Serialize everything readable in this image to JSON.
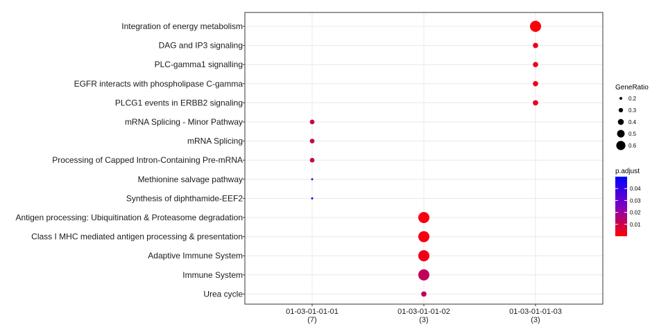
{
  "chart_data": {
    "type": "scatter",
    "grid": true,
    "legend_placement": "right",
    "x_categories": [
      "01-03-01-01-01\n(7)",
      "01-03-01-01-02\n(3)",
      "01-03-01-01-03\n(3)"
    ],
    "y_categories": [
      "Integration of energy metabolism",
      "DAG and IP3 signaling",
      "PLC-gamma1 signalling",
      "EGFR interacts with phospholipase C-gamma",
      "PLCG1 events in ERBB2 signaling",
      "mRNA Splicing - Minor Pathway",
      "mRNA Splicing",
      "Processing of Capped Intron-Containing Pre-mRNA",
      "Methionine salvage pathway",
      "Synthesis of diphthamide-EEF2",
      "Antigen processing: Ubiquitination & Proteasome degradation",
      "Class I MHC mediated antigen processing & presentation",
      "Adaptive Immune System",
      "Immune System",
      "Urea cycle"
    ],
    "points": [
      {
        "x": "01-03-01-01-03",
        "y": "Integration of energy metabolism",
        "gene_ratio": 0.67,
        "p_adjust": 0.001
      },
      {
        "x": "01-03-01-01-03",
        "y": "DAG and IP3 signaling",
        "gene_ratio": 0.33,
        "p_adjust": 0.004
      },
      {
        "x": "01-03-01-01-03",
        "y": "PLC-gamma1 signalling",
        "gene_ratio": 0.33,
        "p_adjust": 0.004
      },
      {
        "x": "01-03-01-01-03",
        "y": "EGFR interacts with phospholipase C-gamma",
        "gene_ratio": 0.33,
        "p_adjust": 0.004
      },
      {
        "x": "01-03-01-01-03",
        "y": "PLCG1 events in ERBB2 signaling",
        "gene_ratio": 0.33,
        "p_adjust": 0.005
      },
      {
        "x": "01-03-01-01-01",
        "y": "mRNA Splicing - Minor Pathway",
        "gene_ratio": 0.29,
        "p_adjust": 0.011
      },
      {
        "x": "01-03-01-01-01",
        "y": "mRNA Splicing",
        "gene_ratio": 0.29,
        "p_adjust": 0.011
      },
      {
        "x": "01-03-01-01-01",
        "y": "Processing of Capped Intron-Containing Pre-mRNA",
        "gene_ratio": 0.29,
        "p_adjust": 0.011
      },
      {
        "x": "01-03-01-01-01",
        "y": "Methionine salvage pathway",
        "gene_ratio": 0.14,
        "p_adjust": 0.036
      },
      {
        "x": "01-03-01-01-01",
        "y": "Synthesis of diphthamide-EEF2",
        "gene_ratio": 0.14,
        "p_adjust": 0.049
      },
      {
        "x": "01-03-01-01-02",
        "y": "Antigen processing: Ubiquitination & Proteasome degradation",
        "gene_ratio": 0.67,
        "p_adjust": 0.002
      },
      {
        "x": "01-03-01-01-02",
        "y": "Class I MHC mediated antigen processing & presentation",
        "gene_ratio": 0.67,
        "p_adjust": 0.002
      },
      {
        "x": "01-03-01-01-02",
        "y": "Adaptive Immune System",
        "gene_ratio": 0.67,
        "p_adjust": 0.003
      },
      {
        "x": "01-03-01-01-02",
        "y": "Immune System",
        "gene_ratio": 0.67,
        "p_adjust": 0.012
      },
      {
        "x": "01-03-01-01-02",
        "y": "Urea cycle",
        "gene_ratio": 0.33,
        "p_adjust": 0.013
      }
    ],
    "size_legend": {
      "title": "GeneRatio",
      "breaks": [
        0.2,
        0.3,
        0.4,
        0.5,
        0.6
      ],
      "labels": [
        "0.2",
        "0.3",
        "0.4",
        "0.5",
        "0.6"
      ]
    },
    "color_legend": {
      "title": "p.adjust",
      "low_color": "#FF0000",
      "high_color": "#0000FF",
      "range": [
        0.0,
        0.05
      ],
      "breaks": [
        0.04,
        0.03,
        0.02,
        0.01
      ],
      "labels": [
        "0.04",
        "0.03",
        "0.02",
        "0.01"
      ]
    },
    "colors": {
      "grid": "#e8e8e8",
      "panel_border": "#333333"
    }
  }
}
